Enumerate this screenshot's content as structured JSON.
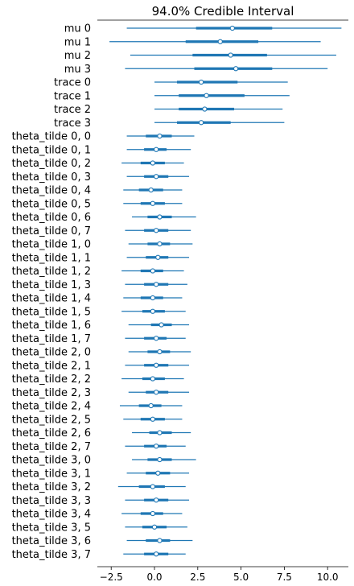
{
  "chart_data": {
    "type": "forest",
    "title": "94.0% Credible Interval",
    "xlim": [
      -3.3,
      11.2
    ],
    "xticks": [
      -2.5,
      0.0,
      2.5,
      5.0,
      7.5,
      10.0
    ],
    "xtick_labels": [
      "−2.5",
      "0.0",
      "2.5",
      "5.0",
      "7.5",
      "10.0"
    ],
    "colors": {
      "line": "#1f77b4",
      "marker_face": "#ffffff",
      "axis": "#000000"
    },
    "rows": [
      {
        "label": "mu 0",
        "hdi_low": -1.6,
        "hdi_high": 10.8,
        "iqr_low": 2.4,
        "iqr_high": 6.8,
        "mean": 4.5
      },
      {
        "label": "mu 1",
        "hdi_low": -2.6,
        "hdi_high": 9.6,
        "iqr_low": 1.8,
        "iqr_high": 6.0,
        "mean": 3.8
      },
      {
        "label": "mu 2",
        "hdi_low": -1.4,
        "hdi_high": 10.5,
        "iqr_low": 2.2,
        "iqr_high": 6.5,
        "mean": 4.4
      },
      {
        "label": "mu 3",
        "hdi_low": -1.7,
        "hdi_high": 10.0,
        "iqr_low": 2.3,
        "iqr_high": 6.8,
        "mean": 4.7
      },
      {
        "label": "trace 0",
        "hdi_low": 0.0,
        "hdi_high": 7.7,
        "iqr_low": 1.3,
        "iqr_high": 4.8,
        "mean": 2.7
      },
      {
        "label": "trace 1",
        "hdi_low": 0.0,
        "hdi_high": 7.8,
        "iqr_low": 1.4,
        "iqr_high": 5.2,
        "mean": 3.0
      },
      {
        "label": "trace 2",
        "hdi_low": 0.0,
        "hdi_high": 7.4,
        "iqr_low": 1.4,
        "iqr_high": 4.6,
        "mean": 2.9
      },
      {
        "label": "trace 3",
        "hdi_low": 0.0,
        "hdi_high": 7.5,
        "iqr_low": 1.3,
        "iqr_high": 4.4,
        "mean": 2.7
      },
      {
        "label": "theta_tilde 0, 0",
        "hdi_low": -1.6,
        "hdi_high": 2.3,
        "iqr_low": -0.5,
        "iqr_high": 1.0,
        "mean": 0.3
      },
      {
        "label": "theta_tilde 0, 1",
        "hdi_low": -1.6,
        "hdi_high": 2.1,
        "iqr_low": -0.6,
        "iqr_high": 0.7,
        "mean": 0.1
      },
      {
        "label": "theta_tilde 0, 2",
        "hdi_low": -1.9,
        "hdi_high": 1.7,
        "iqr_low": -0.8,
        "iqr_high": 0.6,
        "mean": -0.1
      },
      {
        "label": "theta_tilde 0, 3",
        "hdi_low": -1.6,
        "hdi_high": 2.0,
        "iqr_low": -0.6,
        "iqr_high": 0.8,
        "mean": 0.1
      },
      {
        "label": "theta_tilde 0, 4",
        "hdi_low": -1.8,
        "hdi_high": 1.6,
        "iqr_low": -0.9,
        "iqr_high": 0.5,
        "mean": -0.2
      },
      {
        "label": "theta_tilde 0, 5",
        "hdi_low": -1.8,
        "hdi_high": 1.6,
        "iqr_low": -0.8,
        "iqr_high": 0.6,
        "mean": -0.1
      },
      {
        "label": "theta_tilde 0, 6",
        "hdi_low": -1.3,
        "hdi_high": 2.4,
        "iqr_low": -0.4,
        "iqr_high": 1.0,
        "mean": 0.3
      },
      {
        "label": "theta_tilde 0, 7",
        "hdi_low": -1.7,
        "hdi_high": 2.1,
        "iqr_low": -0.6,
        "iqr_high": 0.8,
        "mean": 0.1
      },
      {
        "label": "theta_tilde 1, 0",
        "hdi_low": -1.5,
        "hdi_high": 2.2,
        "iqr_low": -0.4,
        "iqr_high": 0.9,
        "mean": 0.3
      },
      {
        "label": "theta_tilde 1, 1",
        "hdi_low": -1.6,
        "hdi_high": 2.0,
        "iqr_low": -0.5,
        "iqr_high": 0.8,
        "mean": 0.2
      },
      {
        "label": "theta_tilde 1, 2",
        "hdi_low": -1.9,
        "hdi_high": 1.7,
        "iqr_low": -0.8,
        "iqr_high": 0.5,
        "mean": -0.1
      },
      {
        "label": "theta_tilde 1, 3",
        "hdi_low": -1.7,
        "hdi_high": 1.9,
        "iqr_low": -0.6,
        "iqr_high": 0.8,
        "mean": 0.1
      },
      {
        "label": "theta_tilde 1, 4",
        "hdi_low": -1.8,
        "hdi_high": 1.6,
        "iqr_low": -0.8,
        "iqr_high": 0.5,
        "mean": -0.1
      },
      {
        "label": "theta_tilde 1, 5",
        "hdi_low": -1.9,
        "hdi_high": 1.8,
        "iqr_low": -0.7,
        "iqr_high": 0.6,
        "mean": -0.1
      },
      {
        "label": "theta_tilde 1, 6",
        "hdi_low": -1.5,
        "hdi_high": 2.0,
        "iqr_low": -0.2,
        "iqr_high": 1.0,
        "mean": 0.4
      },
      {
        "label": "theta_tilde 1, 7",
        "hdi_low": -1.7,
        "hdi_high": 1.8,
        "iqr_low": -0.6,
        "iqr_high": 0.7,
        "mean": 0.1
      },
      {
        "label": "theta_tilde 2, 0",
        "hdi_low": -1.5,
        "hdi_high": 2.1,
        "iqr_low": -0.4,
        "iqr_high": 0.9,
        "mean": 0.3
      },
      {
        "label": "theta_tilde 2, 1",
        "hdi_low": -1.7,
        "hdi_high": 2.0,
        "iqr_low": -0.6,
        "iqr_high": 0.8,
        "mean": 0.1
      },
      {
        "label": "theta_tilde 2, 2",
        "hdi_low": -1.9,
        "hdi_high": 1.7,
        "iqr_low": -0.7,
        "iqr_high": 0.6,
        "mean": -0.1
      },
      {
        "label": "theta_tilde 2, 3",
        "hdi_low": -1.5,
        "hdi_high": 2.0,
        "iqr_low": -0.5,
        "iqr_high": 0.8,
        "mean": 0.1
      },
      {
        "label": "theta_tilde 2, 4",
        "hdi_low": -2.0,
        "hdi_high": 1.6,
        "iqr_low": -0.9,
        "iqr_high": 0.4,
        "mean": -0.2
      },
      {
        "label": "theta_tilde 2, 5",
        "hdi_low": -1.8,
        "hdi_high": 1.6,
        "iqr_low": -0.8,
        "iqr_high": 0.6,
        "mean": -0.1
      },
      {
        "label": "theta_tilde 2, 6",
        "hdi_low": -1.3,
        "hdi_high": 2.1,
        "iqr_low": -0.3,
        "iqr_high": 1.0,
        "mean": 0.3
      },
      {
        "label": "theta_tilde 2, 7",
        "hdi_low": -1.7,
        "hdi_high": 1.8,
        "iqr_low": -0.6,
        "iqr_high": 0.7,
        "mean": 0.1
      },
      {
        "label": "theta_tilde 3, 0",
        "hdi_low": -1.3,
        "hdi_high": 2.4,
        "iqr_low": -0.4,
        "iqr_high": 1.0,
        "mean": 0.3
      },
      {
        "label": "theta_tilde 3, 1",
        "hdi_low": -1.6,
        "hdi_high": 2.0,
        "iqr_low": -0.5,
        "iqr_high": 0.9,
        "mean": 0.2
      },
      {
        "label": "theta_tilde 3, 2",
        "hdi_low": -2.1,
        "hdi_high": 1.8,
        "iqr_low": -0.9,
        "iqr_high": 0.6,
        "mean": -0.1
      },
      {
        "label": "theta_tilde 3, 3",
        "hdi_low": -1.7,
        "hdi_high": 2.0,
        "iqr_low": -0.6,
        "iqr_high": 0.8,
        "mean": 0.1
      },
      {
        "label": "theta_tilde 3, 4",
        "hdi_low": -1.9,
        "hdi_high": 1.6,
        "iqr_low": -0.8,
        "iqr_high": 0.5,
        "mean": -0.1
      },
      {
        "label": "theta_tilde 3, 5",
        "hdi_low": -1.7,
        "hdi_high": 1.9,
        "iqr_low": -0.7,
        "iqr_high": 0.7,
        "mean": 0.0
      },
      {
        "label": "theta_tilde 3, 6",
        "hdi_low": -1.6,
        "hdi_high": 2.2,
        "iqr_low": -0.5,
        "iqr_high": 0.9,
        "mean": 0.3
      },
      {
        "label": "theta_tilde 3, 7",
        "hdi_low": -1.8,
        "hdi_high": 1.8,
        "iqr_low": -0.6,
        "iqr_high": 0.8,
        "mean": 0.1
      }
    ]
  }
}
